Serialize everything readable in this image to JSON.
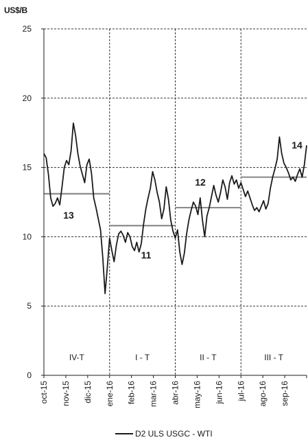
{
  "chart_data": {
    "type": "line",
    "y_unit_label": "US$/B",
    "ylim": [
      0,
      25
    ],
    "y_ticks": [
      0,
      5,
      10,
      15,
      20,
      25
    ],
    "y_grid": "dashed",
    "x_tick_labels": [
      "oct-15",
      "nov-15",
      "dic-15",
      "ene-16",
      "feb-16",
      "mar-16",
      "abr-16",
      "may-16",
      "jun-16",
      "jul-16",
      "ago-16",
      "sep-16"
    ],
    "series": [
      {
        "name": "D2 ULS USGC - WTI",
        "color": "#1a1a1a",
        "values": [
          16.0,
          15.7,
          14.5,
          12.8,
          12.2,
          12.4,
          12.8,
          12.3,
          13.6,
          15.0,
          15.5,
          15.2,
          16.2,
          18.2,
          17.3,
          16.0,
          15.1,
          14.5,
          13.9,
          15.2,
          15.6,
          14.6,
          12.8,
          12.1,
          11.3,
          10.5,
          8.5,
          5.9,
          7.8,
          9.9,
          9.0,
          8.2,
          9.4,
          10.2,
          10.4,
          10.1,
          9.6,
          10.3,
          10.0,
          9.3,
          9.0,
          9.6,
          8.9,
          9.5,
          10.9,
          12.0,
          12.8,
          13.5,
          14.7,
          14.1,
          13.2,
          12.5,
          11.3,
          12.0,
          13.6,
          12.7,
          11.2,
          10.4,
          9.9,
          10.5,
          8.9,
          8.0,
          8.8,
          10.2,
          11.2,
          11.9,
          12.5,
          12.2,
          11.6,
          12.8,
          11.2,
          10.0,
          11.5,
          12.1,
          12.9,
          13.7,
          13.0,
          12.5,
          13.2,
          14.1,
          13.6,
          12.7,
          13.9,
          14.4,
          13.8,
          14.1,
          13.5,
          13.9,
          13.4,
          12.9,
          13.3,
          12.8,
          12.3,
          11.9,
          12.1,
          11.8,
          12.2,
          12.6,
          12.0,
          12.4,
          13.5,
          14.3,
          14.9,
          15.6,
          17.2,
          16.0,
          15.3,
          15.0,
          14.6,
          14.1,
          14.3,
          14.0,
          14.5,
          14.9,
          14.3,
          15.2,
          16.6
        ]
      }
    ],
    "quarters": [
      {
        "label": "IV-T",
        "average": 13.1,
        "average_label": "13"
      },
      {
        "label": "I - T",
        "average": 10.8,
        "average_label": "11"
      },
      {
        "label": "II - T",
        "average": 12.1,
        "average_label": "12"
      },
      {
        "label": "III - T",
        "average": 14.3,
        "average_label": "14"
      }
    ],
    "legend": {
      "label": "D2 ULS USGC - WTI",
      "position": "bottom-center"
    },
    "colors": {
      "series": "#1a1a1a",
      "average_line": "#8c8c8c",
      "grid": "#333333"
    }
  }
}
